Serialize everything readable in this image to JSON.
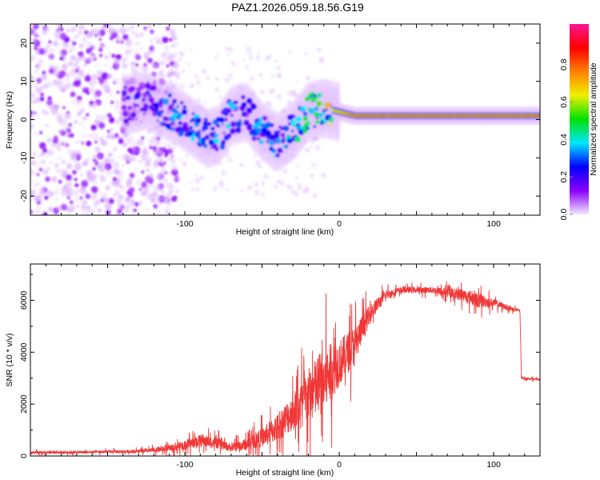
{
  "title": "PAZ1.2026.059.18.56.G19",
  "chart_data": [
    {
      "type": "heatmap",
      "title": "PAZ1.2026.059.18.56.G19",
      "xlabel": "Height of straight line (km)",
      "ylabel": "Frequency (Hz)",
      "xlim": [
        -200,
        130
      ],
      "ylim": [
        -25,
        25
      ],
      "xticks": [
        -100,
        0,
        100
      ],
      "xtick_labels": [
        "-100",
        "0",
        "100"
      ],
      "yticks": [
        -20,
        -10,
        0,
        10,
        20
      ],
      "ytick_labels": [
        "-20",
        "-10",
        "0",
        "10",
        "20"
      ],
      "colorbar": {
        "label": "Normalized spectral amplitude",
        "range": [
          0,
          1
        ],
        "ticks": [
          0.0,
          0.2,
          0.4,
          0.6,
          0.8
        ],
        "tick_labels": [
          "0.0",
          "0.2",
          "0.4",
          "0.6",
          "0.8"
        ],
        "colors": [
          "#f4e8ff",
          "#8a00ff",
          "#0000ff",
          "#00e8ff",
          "#00e000",
          "#f0f000",
          "#ff8000",
          "#ff0000",
          "#ff1493"
        ]
      },
      "ridge": {
        "height_km": [
          -135,
          -125,
          -115,
          -105,
          -95,
          -85,
          -78,
          -70,
          -60,
          -50,
          -40,
          -30,
          -20,
          -10,
          0,
          10,
          20,
          40,
          60,
          80,
          100,
          130
        ],
        "frequency_hz": [
          4,
          5,
          3,
          1,
          -2,
          -5,
          -4,
          1,
          2,
          -3,
          -6,
          -3,
          2,
          3,
          2,
          1,
          1,
          1,
          1,
          1,
          1,
          1
        ],
        "amplitude": [
          0.15,
          0.2,
          0.25,
          0.3,
          0.3,
          0.25,
          0.3,
          0.3,
          0.25,
          0.3,
          0.3,
          0.35,
          0.45,
          0.55,
          0.7,
          0.85,
          0.9,
          0.92,
          0.9,
          0.9,
          0.9,
          0.85
        ]
      },
      "noise_region_km": [
        -200,
        -120
      ]
    },
    {
      "type": "line",
      "xlabel": "Height of straight line (km)",
      "ylabel": "SNR (10 * v/v)",
      "xlim": [
        -200,
        130
      ],
      "ylim": [
        0,
        7400
      ],
      "xticks": [
        -100,
        0,
        100
      ],
      "xtick_labels": [
        "-100",
        "0",
        "100"
      ],
      "yticks": [
        0,
        2000,
        4000,
        6000
      ],
      "ytick_labels": [
        "0",
        "2000",
        "4000",
        "6000"
      ],
      "color": "#ee2222",
      "series": [
        {
          "name": "SNR",
          "x": [
            -200,
            -180,
            -160,
            -140,
            -130,
            -120,
            -110,
            -100,
            -90,
            -80,
            -70,
            -60,
            -50,
            -40,
            -30,
            -20,
            -10,
            0,
            10,
            20,
            30,
            40,
            60,
            80,
            90,
            100,
            110,
            117,
            118,
            130
          ],
          "y": [
            150,
            140,
            150,
            170,
            180,
            220,
            300,
            420,
            600,
            500,
            320,
            450,
            700,
            1100,
            1700,
            2300,
            2900,
            3600,
            4300,
            5500,
            6200,
            6400,
            6400,
            6200,
            6000,
            5900,
            5700,
            5600,
            3000,
            2950
          ],
          "noise_amplitude": [
            80,
            80,
            80,
            100,
            100,
            150,
            200,
            300,
            400,
            350,
            250,
            400,
            600,
            900,
            1200,
            1800,
            2200,
            1500,
            1200,
            600,
            300,
            200,
            200,
            400,
            500,
            250,
            150,
            100,
            60,
            60
          ]
        }
      ]
    }
  ]
}
